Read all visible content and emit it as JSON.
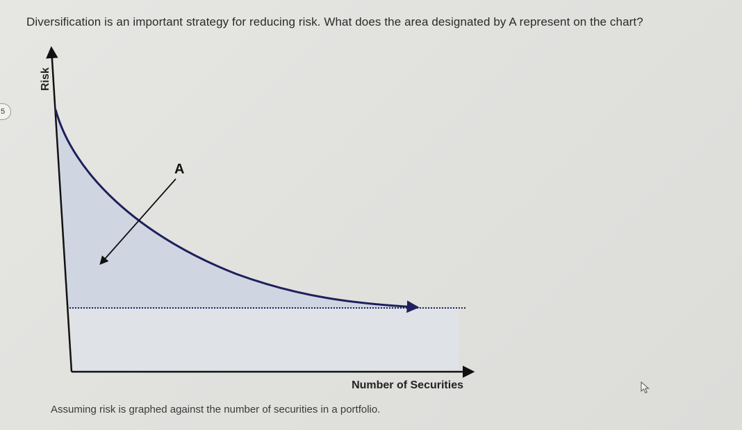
{
  "question": {
    "text": "Diversification is an important strategy for reducing risk. What does the area designated by A represent on the chart?"
  },
  "edge_badge": "5",
  "caption": "Assuming risk is graphed against the number of securities in a portfolio.",
  "chart_data": {
    "type": "area",
    "title": "",
    "xlabel": "Number of Securities",
    "ylabel": "Risk",
    "annotation": "A",
    "colors": {
      "curve": "#1f1f5c",
      "area_above_floor": "#cdd5e0",
      "area_below_floor": "#dfe2e6",
      "axis": "#111111",
      "floor_line": "#1f1f5c"
    }
  },
  "icons": {
    "cursor": "mouse-pointer-icon"
  }
}
